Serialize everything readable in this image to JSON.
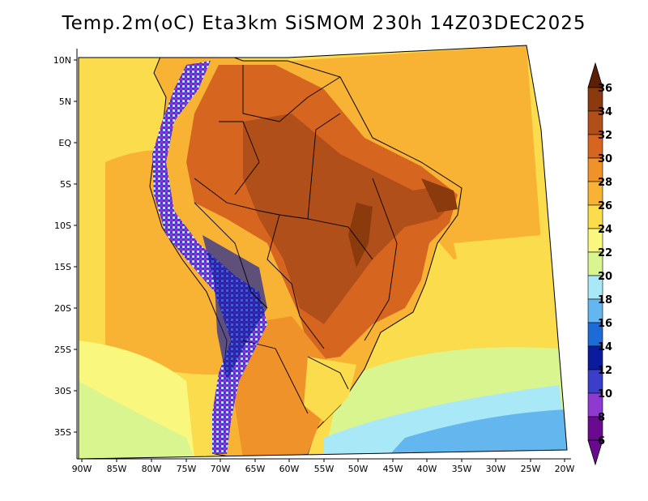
{
  "title": "Temp.2m(oC) Eta3km SiSMOM 230h 14Z03DEC2025",
  "map": {
    "variable": "2 m temperature",
    "units": "oC",
    "model": "Eta3km SiSMOM",
    "lat_labels": [
      "10N",
      "5N",
      "EQ",
      "5S",
      "10S",
      "15S",
      "20S",
      "25S",
      "30S",
      "35S"
    ],
    "lon_labels": [
      "90W",
      "85W",
      "80W",
      "75W",
      "70W",
      "65W",
      "60W",
      "55W",
      "50W",
      "45W",
      "40W",
      "35W",
      "30W",
      "25W",
      "20W"
    ]
  },
  "colorbar": {
    "levels": [
      "36",
      "34",
      "32",
      "30",
      "28",
      "26",
      "24",
      "22",
      "20",
      "18",
      "16",
      "14",
      "12",
      "10",
      "8",
      "6"
    ],
    "colors": [
      "#5a1f05",
      "#8a3a0d",
      "#b14f1a",
      "#d6661f",
      "#f0922a",
      "#f8b335",
      "#fbdc4c",
      "#f9f77e",
      "#d9f590",
      "#a9e8f7",
      "#64b7ee",
      "#1c6bd7",
      "#0a1b9c",
      "#3a3ec8",
      "#8e3ad0",
      "#6a0a90"
    ]
  },
  "colors": {
    "ocean_warm": "#f8b335",
    "ocean_cool": "#fbdc4c",
    "border": "#000000"
  }
}
